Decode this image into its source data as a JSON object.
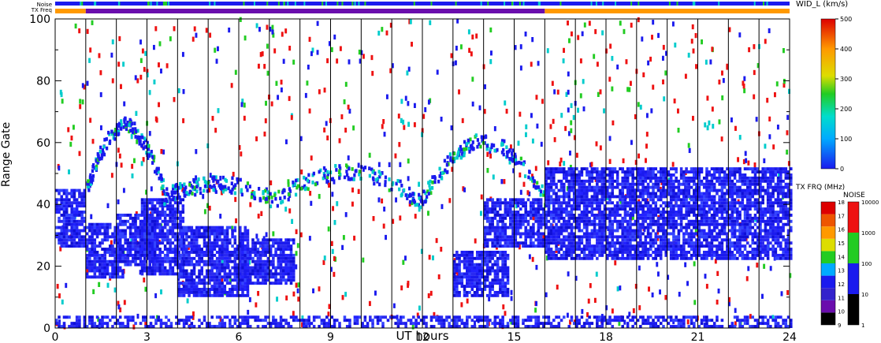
{
  "chart_data": {
    "type": "heatmap",
    "xlabel": "UT hours",
    "ylabel": "Range Gate",
    "xlim": [
      0,
      24
    ],
    "ylim": [
      0,
      100
    ],
    "x_ticks": [
      "0",
      "3",
      "6",
      "9",
      "12",
      "15",
      "18",
      "21",
      "24"
    ],
    "y_ticks": [
      "0",
      "20",
      "40",
      "60",
      "80",
      "100"
    ],
    "hour_gridlines": [
      1,
      2,
      3,
      4,
      5,
      6,
      7,
      8,
      9,
      10,
      11,
      12,
      13,
      14,
      15,
      16,
      17,
      18,
      19,
      20,
      21,
      22,
      23
    ],
    "noise_strip_label": "Noise",
    "txfreq_strip_label": "TX Freq",
    "txfreq_strip": [
      {
        "from": 0,
        "to": 1,
        "color": "#ff9900"
      },
      {
        "from": 1,
        "to": 16,
        "color": "#6a0dad"
      },
      {
        "from": 16,
        "to": 24,
        "color": "#ff9900"
      }
    ],
    "wid_colorbar": {
      "title": "WID_L (km/s)",
      "ticks": [
        "0",
        "100",
        "200",
        "300",
        "400",
        "500"
      ]
    },
    "txfrq_colorbar": {
      "title": "TX FRQ (MHz)",
      "ticks": [
        "9",
        "10",
        "11",
        "12",
        "13",
        "14",
        "15",
        "16",
        "17",
        "18"
      ]
    },
    "noise_colorbar": {
      "title": "NOISE",
      "ticks": [
        "1",
        "10",
        "100",
        "1000",
        "10000"
      ]
    },
    "bands": [
      {
        "x0": 0.0,
        "x1": 1.0,
        "y0": 26,
        "y1": 45
      },
      {
        "x0": 1.0,
        "x1": 2.2,
        "y0": 16,
        "y1": 34
      },
      {
        "x0": 2.0,
        "x1": 3.3,
        "y0": 20,
        "y1": 37
      },
      {
        "x0": 2.8,
        "x1": 4.2,
        "y0": 17,
        "y1": 42
      },
      {
        "x0": 4.0,
        "x1": 6.3,
        "y0": 10,
        "y1": 33
      },
      {
        "x0": 6.0,
        "x1": 7.8,
        "y0": 14,
        "y1": 29
      },
      {
        "x0": 13.0,
        "x1": 14.8,
        "y0": 10,
        "y1": 25
      },
      {
        "x0": 14.0,
        "x1": 16.0,
        "y0": 26,
        "y1": 42
      },
      {
        "x0": 16.0,
        "x1": 24.0,
        "y0": 22,
        "y1": 52
      },
      {
        "x0": 0.0,
        "x1": 24.0,
        "y0": 0,
        "y1": 4
      }
    ],
    "arcs": [
      {
        "x0": 1.0,
        "x1": 3.5,
        "y0": 45,
        "y1": 65
      },
      {
        "x0": 3.5,
        "x1": 7.0,
        "y0": 42,
        "y1": 46
      },
      {
        "x0": 7.0,
        "x1": 12.0,
        "y0": 40,
        "y1": 50
      },
      {
        "x0": 12.0,
        "x1": 16.0,
        "y0": 42,
        "y1": 60
      }
    ]
  }
}
